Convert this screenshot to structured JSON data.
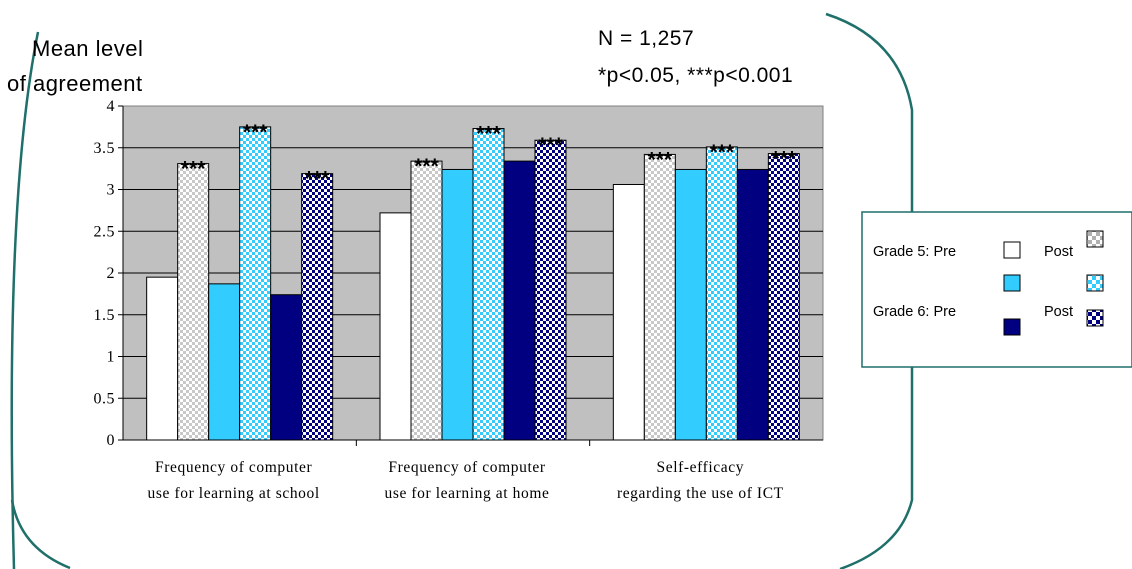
{
  "header": {
    "ylabel_line1": "Mean level",
    "ylabel_line2": "of agreement",
    "n_label": "N = 1,257",
    "sig_label": "*p<0.05, ***p<0.001"
  },
  "legend": {
    "grade5_label": "Grade 5: Pre",
    "grade6_label": "Grade 6: Pre",
    "post_label_1": "Post",
    "post_label_2": "Post"
  },
  "colors": {
    "plot_bg": "#c0c0c0",
    "pre_grade5": "#ffffff",
    "mid_grade": "#33ccff",
    "pre_grade6": "#000080",
    "frame": "#1f6f6a"
  },
  "chart_data": {
    "type": "bar",
    "categories": [
      [
        "Frequency of computer",
        "use for learning at school"
      ],
      [
        "Frequency of computer",
        "use for learning at home"
      ],
      [
        "Self-efficacy",
        "regarding the use of ICT"
      ]
    ],
    "series": [
      {
        "values": [
          1.95,
          2.72,
          3.06
        ],
        "fill": "solid",
        "color": "#ffffff"
      },
      {
        "values": [
          3.31,
          3.34,
          3.42
        ],
        "fill": "checker-gray",
        "color": "#c8c8c8"
      },
      {
        "values": [
          1.87,
          3.24,
          3.24
        ],
        "fill": "solid",
        "color": "#33ccff"
      },
      {
        "values": [
          3.75,
          3.73,
          3.51
        ],
        "fill": "checker-cyan",
        "color": "#33ccff"
      },
      {
        "values": [
          1.74,
          3.34,
          3.24
        ],
        "fill": "solid",
        "color": "#000080"
      },
      {
        "values": [
          3.19,
          3.59,
          3.43
        ],
        "fill": "checker-navy",
        "color": "#000080"
      }
    ],
    "annotations": [
      {
        "category": 0,
        "series": 1,
        "text": "***"
      },
      {
        "category": 0,
        "series": 3,
        "text": "***"
      },
      {
        "category": 0,
        "series": 5,
        "text": "***"
      },
      {
        "category": 1,
        "series": 1,
        "text": "***"
      },
      {
        "category": 1,
        "series": 3,
        "text": "***"
      },
      {
        "category": 1,
        "series": 5,
        "text": "***"
      },
      {
        "category": 2,
        "series": 1,
        "text": "***"
      },
      {
        "category": 2,
        "series": 3,
        "text": "***"
      },
      {
        "category": 2,
        "series": 5,
        "text": "***"
      }
    ],
    "ylim": [
      0,
      4
    ],
    "yticks": [
      "0",
      "0.5",
      "1",
      "1.5",
      "2",
      "2.5",
      "3",
      "3.5",
      "4"
    ],
    "ytick_values": [
      0,
      0.5,
      1,
      1.5,
      2,
      2.5,
      3,
      3.5,
      4
    ],
    "grid": true,
    "legend_position": "right"
  }
}
